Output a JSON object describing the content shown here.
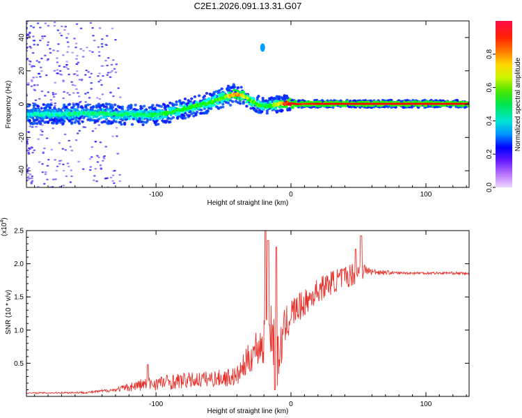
{
  "figure": {
    "title": "C2E1.2026.091.13.31.G07"
  },
  "chart_data": [
    {
      "type": "heatmap",
      "id": "spectrogram",
      "xlabel": "Height of straight line (km)",
      "ylabel": "Frequency (Hz)",
      "xlim": [
        -196,
        132
      ],
      "ylim": [
        -50,
        50
      ],
      "xticks": [
        -100,
        0,
        100
      ],
      "xtick_labels": [
        "-100",
        "0",
        "100"
      ],
      "yticks": [
        -40,
        -20,
        0,
        20,
        40
      ],
      "ytick_labels": [
        "-40",
        "-20",
        "0",
        "20",
        "40"
      ],
      "ridge": {
        "x": [
          -196,
          -170,
          -150,
          -130,
          -110,
          -100,
          -90,
          -80,
          -70,
          -60,
          -50,
          -42,
          -35,
          -30,
          -25,
          -20,
          -15,
          -10,
          -5,
          0,
          5,
          10,
          20,
          40,
          60,
          80,
          100,
          120,
          132
        ],
        "y": [
          -6,
          -6,
          -5.5,
          -6,
          -6.5,
          -6.5,
          -5,
          -3,
          -1,
          1,
          4,
          6,
          5,
          2,
          0,
          -1,
          -1,
          0,
          0.5,
          0.5,
          0,
          0.2,
          0.2,
          0.2,
          0.2,
          0.2,
          0.2,
          0.2,
          0.2
        ],
        "amplitude": [
          0.35,
          0.4,
          0.42,
          0.45,
          0.45,
          0.45,
          0.5,
          0.5,
          0.55,
          0.55,
          0.6,
          0.85,
          0.75,
          0.6,
          0.55,
          0.5,
          0.55,
          0.7,
          0.9,
          0.95,
          0.95,
          0.9,
          0.95,
          0.95,
          0.95,
          0.95,
          0.95,
          0.95,
          0.95
        ]
      },
      "isolated_blob": {
        "x": -21,
        "y": 34,
        "amplitude": 0.25
      },
      "colorbar": {
        "label": "Normalized spectral amplitude",
        "range": [
          0,
          1
        ],
        "ticks": [
          0.0,
          0.2,
          0.4,
          0.6,
          0.8
        ],
        "tick_labels": [
          "0.0",
          "0.2",
          "0.4",
          "0.6",
          "0.8"
        ]
      }
    },
    {
      "type": "line",
      "id": "snr",
      "xlabel": "Height of straight line (km)",
      "ylabel": "SNR (10 * v/v)",
      "scale_label": "(x10",
      "scale_exp": "4",
      "scale_close": ")",
      "color": "#e8302a",
      "xlim": [
        -196,
        132
      ],
      "ylim": [
        0,
        2.5
      ],
      "xticks": [
        -100,
        0,
        100
      ],
      "xtick_labels": [
        "-100",
        "0",
        "100"
      ],
      "yticks": [
        0.5,
        1.0,
        1.5,
        2.0,
        2.5
      ],
      "ytick_labels": [
        "0.5",
        "1.0",
        "1.5",
        "2.0",
        "2.5"
      ],
      "trend": {
        "x": [
          -196,
          -150,
          -130,
          -110,
          -90,
          -70,
          -50,
          -40,
          -35,
          -30,
          -25,
          -20,
          -15,
          -10,
          -5,
          0,
          10,
          20,
          30,
          40,
          50,
          55,
          60,
          80,
          100,
          120,
          132
        ],
        "y": [
          0.05,
          0.06,
          0.1,
          0.18,
          0.22,
          0.25,
          0.28,
          0.3,
          0.45,
          0.6,
          0.75,
          0.8,
          1.1,
          0.5,
          1.0,
          1.25,
          1.4,
          1.6,
          1.72,
          1.8,
          1.88,
          1.9,
          1.88,
          1.86,
          1.86,
          1.86,
          1.85
        ]
      },
      "noise": {
        "x": [
          -196,
          -150,
          -130,
          -110,
          -90,
          -60,
          -40,
          -30,
          -20,
          -15,
          -10,
          -5,
          0,
          10,
          30,
          50,
          55,
          60,
          80,
          132
        ],
        "y": [
          0.01,
          0.015,
          0.03,
          0.1,
          0.12,
          0.12,
          0.15,
          0.25,
          0.35,
          0.45,
          0.4,
          0.3,
          0.25,
          0.2,
          0.18,
          0.18,
          0.1,
          0.05,
          0.02,
          0.02
        ]
      },
      "peaks": [
        {
          "x": -19,
          "y": 2.5
        },
        {
          "x": -17,
          "y": 2.35
        },
        {
          "x": -11,
          "y": 2.25
        },
        {
          "x": -12,
          "y": 0.1
        },
        {
          "x": 52,
          "y": 2.42
        },
        {
          "x": 48,
          "y": 2.22
        },
        {
          "x": -106,
          "y": 0.48
        }
      ]
    }
  ]
}
